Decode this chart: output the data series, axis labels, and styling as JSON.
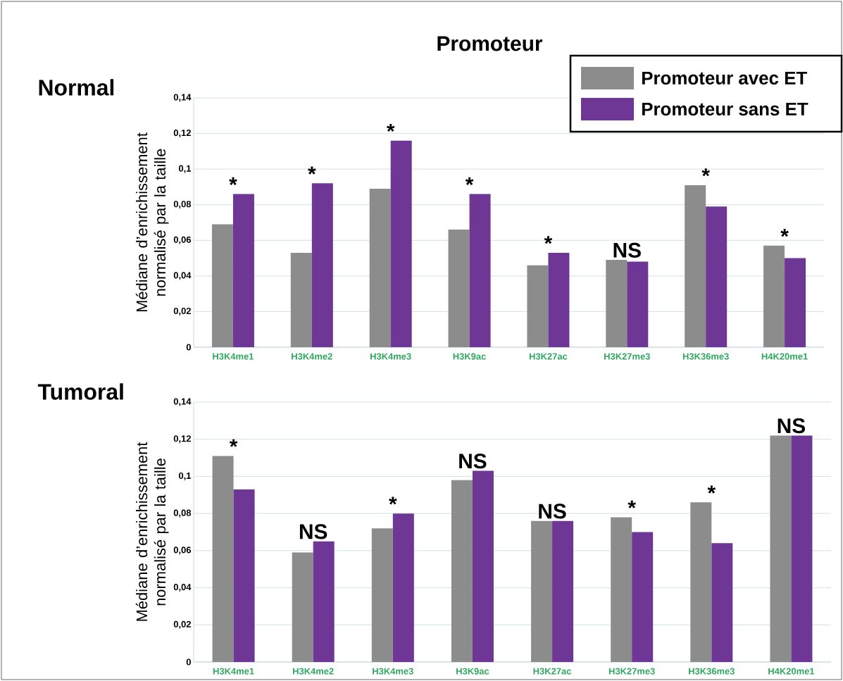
{
  "chart_data": [
    {
      "type": "bar",
      "title": "Promoteur",
      "subtitle": "Normal",
      "ylabel": "Médiane d’enrichissement normalisé par la taille",
      "categories": [
        "H3K4me1",
        "H3K4me2",
        "H3K4me3",
        "H3K9ac",
        "H3K27ac",
        "H3K27me3",
        "H3K36me3",
        "H4K20me1"
      ],
      "series": [
        {
          "name": "Promoteur avec ET",
          "color": "#8c8c8c",
          "values": [
            0.069,
            0.053,
            0.089,
            0.066,
            0.046,
            0.049,
            0.091,
            0.057
          ]
        },
        {
          "name": "Promoteur sans ET",
          "color": "#6f3795",
          "values": [
            0.086,
            0.092,
            0.116,
            0.086,
            0.053,
            0.048,
            0.079,
            0.05
          ]
        }
      ],
      "ylim": [
        0,
        0.14
      ],
      "yticks": [
        0,
        {
          "value": 0.02,
          "label": "0,02"
        },
        {
          "value": 0.04,
          "label": "0,04"
        },
        {
          "value": 0.06,
          "label": "0,06"
        },
        {
          "value": 0.08,
          "label": "0,08"
        },
        {
          "value": 0.1,
          "label": "0,1"
        },
        {
          "value": 0.12,
          "label": "0,12"
        },
        {
          "value": 0.14,
          "label": "0,14"
        }
      ],
      "grid": "y",
      "legend": "top right",
      "annotations": [
        {
          "text": "*",
          "x": "H3K4me1",
          "y": 0.086
        },
        {
          "text": "*",
          "x": "H3K4me2",
          "y": 0.092
        },
        {
          "text": "*",
          "x": "H3K4me3",
          "y": 0.116
        },
        {
          "text": "*",
          "x": "H3K9ac",
          "y": 0.086
        },
        {
          "text": "*",
          "x": "H3K27ac",
          "y": 0.053
        },
        {
          "text": "NS",
          "x": "H3K27me3",
          "y": 0.049
        },
        {
          "text": "*",
          "x": "H3K36me3",
          "y": 0.091
        },
        {
          "text": "*",
          "x": "H4K20me1",
          "y": 0.057
        }
      ]
    },
    {
      "type": "bar",
      "subtitle": "Tumoral",
      "ylabel": "Médiane d’enrichissement normalisé par la taille",
      "categories": [
        "H3K4me1",
        "H3K4me2",
        "H3K4me3",
        "H3K9ac",
        "H3K27ac",
        "H3K27me3",
        "H3K36me3",
        "H4K20me1"
      ],
      "series": [
        {
          "color": "#8c8c8c",
          "values": [
            0.111,
            0.059,
            0.072,
            0.098,
            0.076,
            0.078,
            0.086,
            0.122
          ]
        },
        {
          "color": "#6f3795",
          "values": [
            0.093,
            0.065,
            0.08,
            0.103,
            0.076,
            0.07,
            0.064,
            0.122
          ]
        }
      ],
      "ylim": [
        0,
        0.14
      ],
      "yticks": [
        0,
        {
          "value": 0.02,
          "label": "0,02"
        },
        {
          "value": 0.04,
          "label": "0,04"
        },
        {
          "value": 0.06,
          "label": "0,06"
        },
        {
          "value": 0.08,
          "label": "0,08"
        },
        {
          "value": 0.1,
          "label": "0,1"
        },
        {
          "value": 0.12,
          "label": "0,12"
        },
        {
          "value": 0.14,
          "label": "0,14"
        }
      ],
      "grid": "y",
      "annotations": [
        {
          "text": "*",
          "x": "H3K4me1",
          "y": 0.111
        },
        {
          "text": "NS",
          "x": "H3K4me2",
          "y": 0.065
        },
        {
          "text": "*",
          "x": "H3K4me3",
          "y": 0.08
        },
        {
          "text": "NS",
          "x": "H3K9ac",
          "y": 0.103
        },
        {
          "text": "NS",
          "x": "H3K27ac",
          "y": 0.076
        },
        {
          "text": "*",
          "x": "H3K27me3",
          "y": 0.078
        },
        {
          "text": "*",
          "x": "H3K36me3",
          "y": 0.086
        },
        {
          "text": "NS",
          "x": "H4K20me1",
          "y": 0.122
        }
      ]
    }
  ]
}
